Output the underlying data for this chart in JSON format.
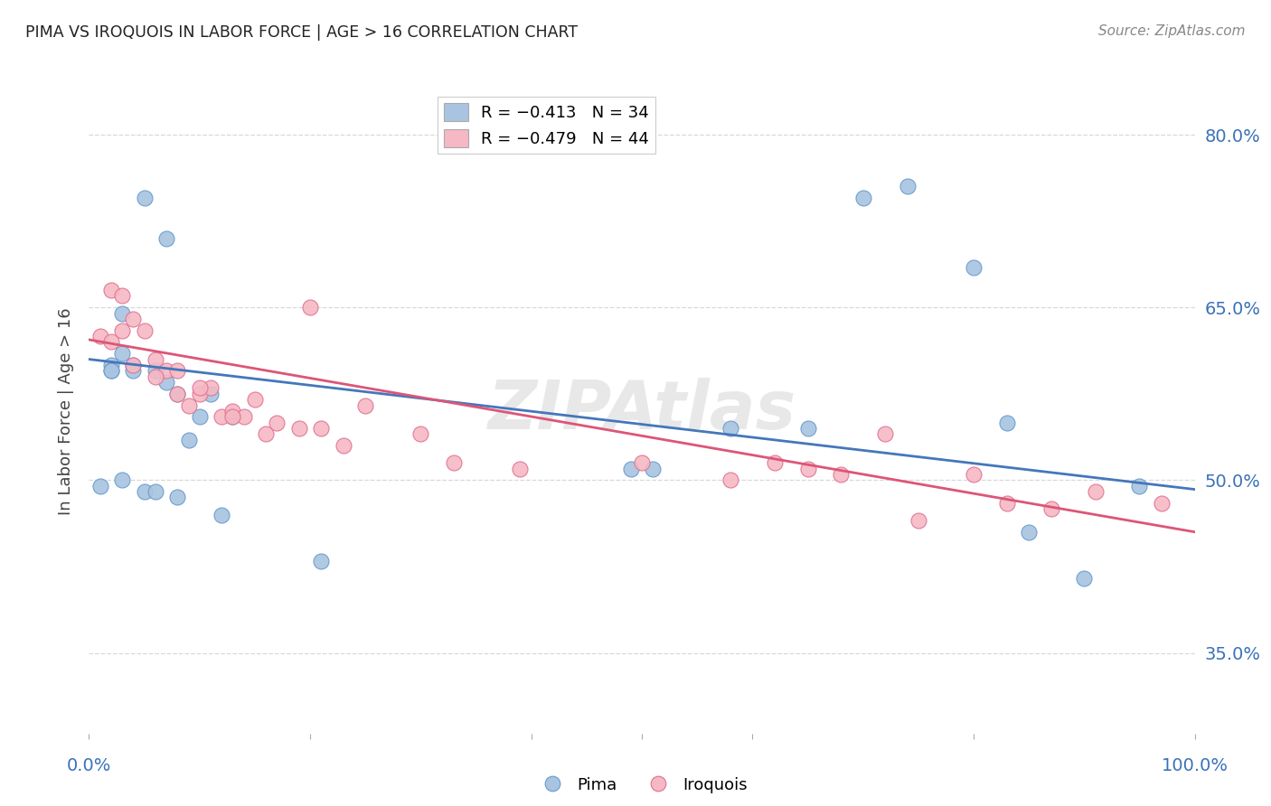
{
  "title": "PIMA VS IROQUOIS IN LABOR FORCE | AGE > 16 CORRELATION CHART",
  "source": "Source: ZipAtlas.com",
  "ylabel": "In Labor Force | Age > 16",
  "xlim": [
    0.0,
    1.0
  ],
  "ylim": [
    0.28,
    0.84
  ],
  "yticks": [
    0.35,
    0.5,
    0.65,
    0.8
  ],
  "ytick_labels": [
    "35.0%",
    "50.0%",
    "65.0%",
    "80.0%"
  ],
  "background_color": "#ffffff",
  "grid_color": "#d8d8d8",
  "pima_color": "#a8c4e0",
  "iroquois_color": "#f5b8c4",
  "pima_edge_color": "#6699cc",
  "iroquois_edge_color": "#e07090",
  "pima_line_color": "#4477bb",
  "iroquois_line_color": "#dd5577",
  "pima_x": [
    0.02,
    0.03,
    0.05,
    0.07,
    0.02,
    0.03,
    0.04,
    0.06,
    0.08,
    0.09,
    0.11,
    0.13,
    0.02,
    0.04,
    0.07,
    0.1,
    0.21,
    0.49,
    0.51,
    0.58,
    0.65,
    0.7,
    0.74,
    0.8,
    0.83,
    0.85,
    0.9,
    0.95,
    0.01,
    0.03,
    0.05,
    0.06,
    0.08,
    0.12
  ],
  "pima_y": [
    0.6,
    0.645,
    0.745,
    0.71,
    0.595,
    0.61,
    0.6,
    0.595,
    0.575,
    0.535,
    0.575,
    0.555,
    0.595,
    0.595,
    0.585,
    0.555,
    0.43,
    0.51,
    0.51,
    0.545,
    0.545,
    0.745,
    0.755,
    0.685,
    0.55,
    0.455,
    0.415,
    0.495,
    0.495,
    0.5,
    0.49,
    0.49,
    0.485,
    0.47
  ],
  "iroquois_x": [
    0.01,
    0.02,
    0.02,
    0.03,
    0.03,
    0.04,
    0.05,
    0.06,
    0.07,
    0.08,
    0.09,
    0.1,
    0.11,
    0.12,
    0.13,
    0.14,
    0.15,
    0.16,
    0.17,
    0.19,
    0.21,
    0.23,
    0.25,
    0.3,
    0.33,
    0.2,
    0.39,
    0.5,
    0.58,
    0.62,
    0.65,
    0.68,
    0.72,
    0.75,
    0.8,
    0.83,
    0.87,
    0.91,
    0.97,
    0.04,
    0.06,
    0.08,
    0.1,
    0.13
  ],
  "iroquois_y": [
    0.625,
    0.665,
    0.62,
    0.66,
    0.63,
    0.64,
    0.63,
    0.605,
    0.595,
    0.595,
    0.565,
    0.575,
    0.58,
    0.555,
    0.56,
    0.555,
    0.57,
    0.54,
    0.55,
    0.545,
    0.545,
    0.53,
    0.565,
    0.54,
    0.515,
    0.65,
    0.51,
    0.515,
    0.5,
    0.515,
    0.51,
    0.505,
    0.54,
    0.465,
    0.505,
    0.48,
    0.475,
    0.49,
    0.48,
    0.6,
    0.59,
    0.575,
    0.58,
    0.555
  ],
  "pima_line_start_y": 0.605,
  "pima_line_end_y": 0.492,
  "iroquois_line_start_y": 0.622,
  "iroquois_line_end_y": 0.455
}
